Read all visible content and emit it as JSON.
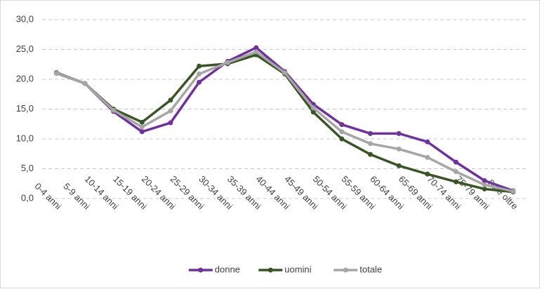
{
  "chart_data": {
    "type": "line",
    "categories": [
      "0-4 anni",
      "5-9 anni",
      "10-14 anni",
      "15-19 anni",
      "20-24 anni",
      "25-29 anni",
      "30-34 anni",
      "35-39 anni",
      "40-44 anni",
      "45-49 anni",
      "50-54 anni",
      "55-59 anni",
      "60-64 anni",
      "65-69 anni",
      "70-74 anni",
      "75-79 anni",
      "80 e oltre"
    ],
    "series": [
      {
        "name": "donne",
        "color": "#7030a0",
        "values": [
          21.1,
          19.3,
          14.6,
          11.2,
          12.7,
          19.5,
          23.0,
          25.3,
          21.3,
          15.8,
          12.4,
          10.9,
          10.9,
          9.5,
          6.1,
          3.0,
          1.3
        ]
      },
      {
        "name": "uomini",
        "color": "#375623",
        "values": [
          21.0,
          19.3,
          15.0,
          12.8,
          16.5,
          22.2,
          22.6,
          24.1,
          20.9,
          14.5,
          10.0,
          7.4,
          5.5,
          4.1,
          2.8,
          1.6,
          1.1
        ]
      },
      {
        "name": "totale",
        "color": "#a6a6a6",
        "values": [
          21.0,
          19.3,
          14.8,
          12.0,
          14.7,
          20.9,
          22.8,
          24.6,
          21.1,
          15.2,
          11.2,
          9.2,
          8.3,
          6.9,
          4.5,
          2.3,
          1.2
        ]
      }
    ],
    "ylim": [
      0,
      30
    ],
    "yticks": [
      {
        "value": 0,
        "label": "0,0"
      },
      {
        "value": 5,
        "label": "5,0"
      },
      {
        "value": 10,
        "label": "10,0"
      },
      {
        "value": 15,
        "label": "15,0"
      },
      {
        "value": 20,
        "label": "20,0"
      },
      {
        "value": 25,
        "label": "25,0"
      },
      {
        "value": 30,
        "label": "30,0"
      }
    ],
    "grid": true,
    "legend": "bottom"
  }
}
